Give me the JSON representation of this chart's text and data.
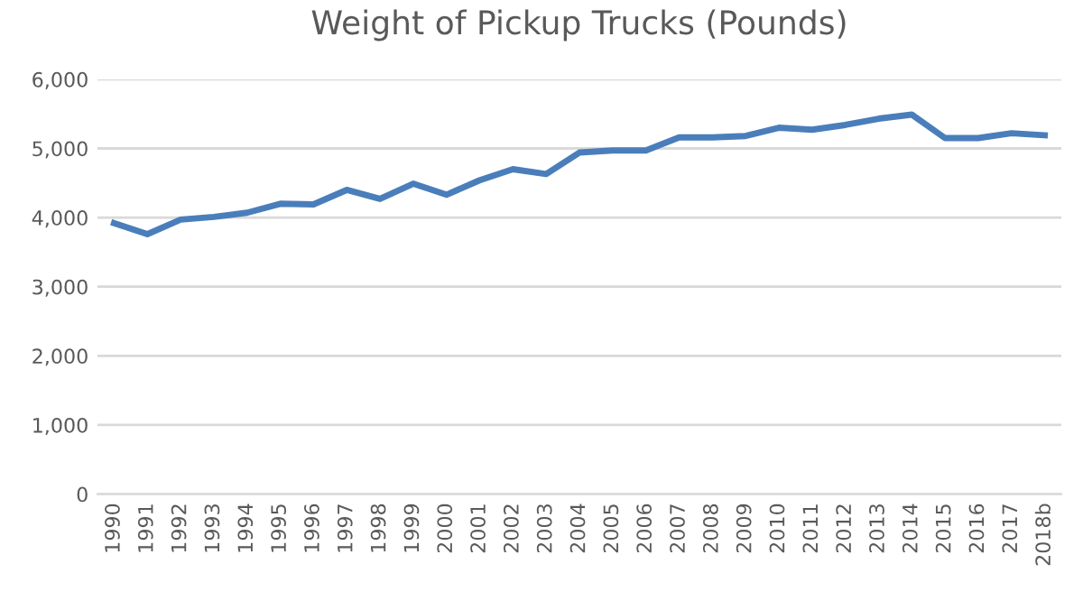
{
  "chart_data": {
    "type": "line",
    "title": "Weight of Pickup Trucks (Pounds)",
    "categories": [
      "1990",
      "1991",
      "1992",
      "1993",
      "1994",
      "1995",
      "1996",
      "1997",
      "1998",
      "1999",
      "2000",
      "2001",
      "2002",
      "2003",
      "2004",
      "2005",
      "2006",
      "2007",
      "2008",
      "2009",
      "2010",
      "2011",
      "2012",
      "2013",
      "2014",
      "2015",
      "2016",
      "2017",
      "2018b"
    ],
    "series": [
      {
        "color": "#4a7ebb",
        "values": [
          3920,
          3760,
          3970,
          4010,
          4070,
          4200,
          4190,
          4400,
          4270,
          4490,
          4330,
          4540,
          4700,
          4630,
          4940,
          4970,
          4970,
          5160,
          5160,
          5180,
          5300,
          5270,
          5340,
          5430,
          5490,
          5150,
          5150,
          5220,
          5190
        ]
      }
    ],
    "ylim": [
      0,
      6000
    ],
    "yticks": [
      {
        "value": 0,
        "label": "0"
      },
      {
        "value": 1000,
        "label": "1,000"
      },
      {
        "value": 2000,
        "label": "2,000"
      },
      {
        "value": 3000,
        "label": "3,000"
      },
      {
        "value": 4000,
        "label": "4,000"
      },
      {
        "value": 5000,
        "label": "5,000"
      },
      {
        "value": 6000,
        "label": "6,000"
      }
    ],
    "grid": "y",
    "marker": "none",
    "line_style": "solid"
  }
}
